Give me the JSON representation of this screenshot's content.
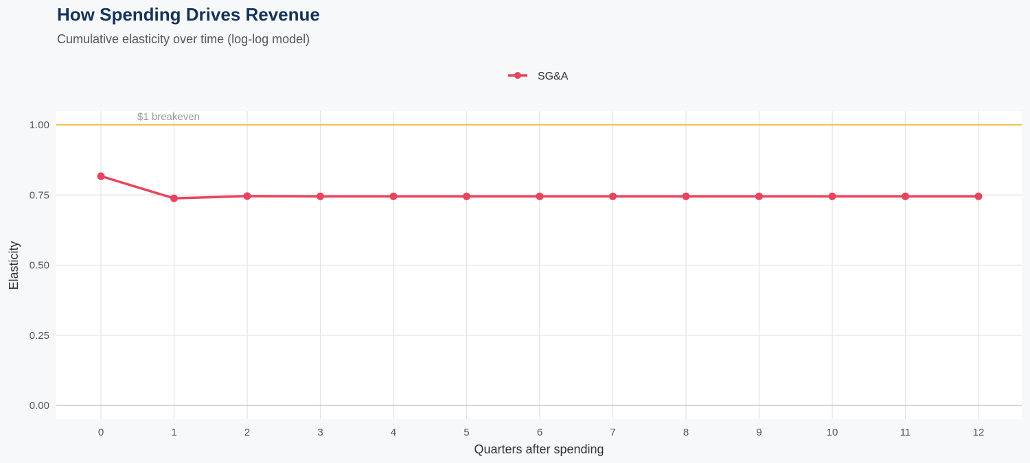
{
  "chart_data": {
    "type": "line",
    "title": "How Spending Drives Revenue",
    "subtitle": "Cumulative elasticity over time (log-log model)",
    "xlabel": "Quarters after spending",
    "ylabel": "Elasticity",
    "x": [
      0,
      1,
      2,
      3,
      4,
      5,
      6,
      7,
      8,
      9,
      10,
      11,
      12
    ],
    "series": [
      {
        "name": "SG&A",
        "color": "#e8445f",
        "values": [
          0.817,
          0.738,
          0.746,
          0.745,
          0.745,
          0.745,
          0.745,
          0.745,
          0.745,
          0.745,
          0.745,
          0.745,
          0.745
        ]
      }
    ],
    "xlim": [
      -0.6,
      12.6
    ],
    "ylim": [
      -0.05,
      1.05
    ],
    "xticks": [
      "0",
      "1",
      "2",
      "3",
      "4",
      "5",
      "6",
      "7",
      "8",
      "9",
      "10",
      "11",
      "12"
    ],
    "yticks": [
      "0.00",
      "0.25",
      "0.50",
      "0.75",
      "1.00"
    ],
    "yticks_values": [
      0,
      0.25,
      0.5,
      0.75,
      1.0
    ],
    "reference_line": {
      "y": 1.0,
      "label": "$1 breakeven",
      "color": "#f2c14e"
    },
    "grid": true,
    "legend_position": "top"
  }
}
